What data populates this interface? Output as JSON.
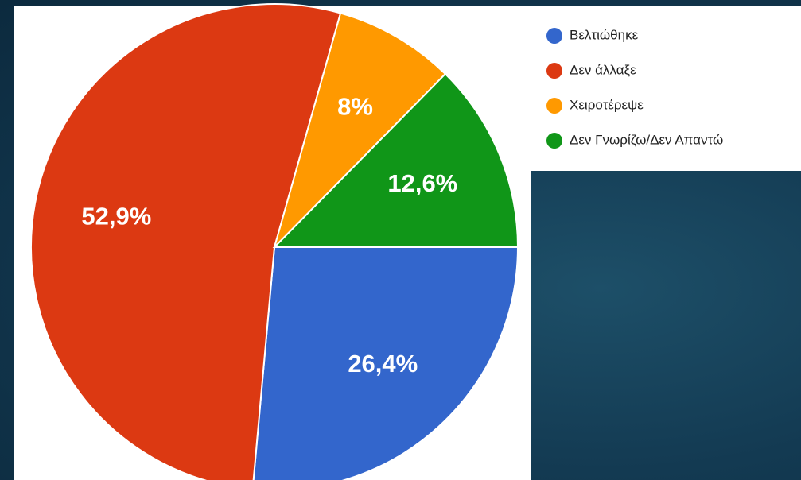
{
  "chart_data": {
    "type": "pie",
    "categories": [
      "Βελτιώθηκε",
      "Δεν άλλαξε",
      "Χειροτέρεψε",
      "Δεν Γνωρίζω/Δεν Απαντώ"
    ],
    "values": [
      26.4,
      52.9,
      8,
      12.6
    ],
    "value_labels": [
      "26,4%",
      "52,9%",
      "8%",
      "12,6%"
    ],
    "colors": [
      "#3366cc",
      "#dc3912",
      "#ff9900",
      "#109618"
    ],
    "legend": "right"
  }
}
